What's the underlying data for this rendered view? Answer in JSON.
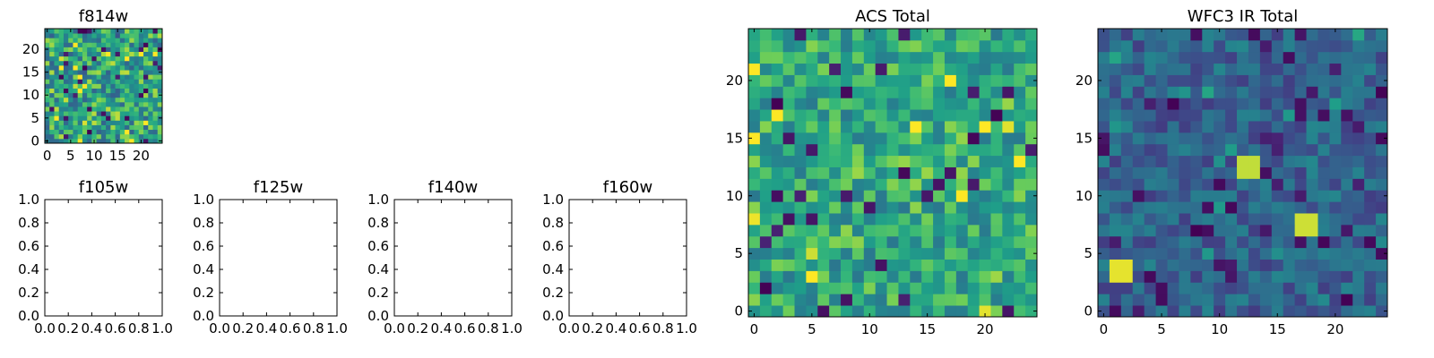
{
  "chart_data": [
    {
      "type": "heatmap",
      "title": "f814w",
      "grid_size": [
        25,
        25
      ],
      "xlim": [
        -0.5,
        24.5
      ],
      "ylim": [
        -0.5,
        24.5
      ],
      "xticks": [
        0,
        5,
        10,
        15,
        20
      ],
      "yticks": [
        0,
        5,
        10,
        15,
        20
      ],
      "colormap": "viridis",
      "color_range": [
        0,
        1
      ],
      "seed": 11,
      "base_range": [
        0.35,
        0.95
      ],
      "rare_low": 0.06,
      "blobs": [],
      "description": "25x25 pixel cutout, mostly green-yellow with scattered dark pixels"
    },
    {
      "type": "empty",
      "title": "f105w",
      "xlim": [
        0,
        1
      ],
      "ylim": [
        0,
        1
      ],
      "xticks": [
        "0.0",
        "0.2",
        "0.4",
        "0.6",
        "0.8",
        "1.0"
      ],
      "yticks": [
        "0.0",
        "0.2",
        "0.4",
        "0.6",
        "0.8",
        "1.0"
      ]
    },
    {
      "type": "empty",
      "title": "f125w",
      "xlim": [
        0,
        1
      ],
      "ylim": [
        0,
        1
      ],
      "xticks": [
        "0.0",
        "0.2",
        "0.4",
        "0.6",
        "0.8",
        "1.0"
      ],
      "yticks": [
        "0.0",
        "0.2",
        "0.4",
        "0.6",
        "0.8",
        "1.0"
      ]
    },
    {
      "type": "empty",
      "title": "f140w",
      "xlim": [
        0,
        1
      ],
      "ylim": [
        0,
        1
      ],
      "xticks": [
        "0.0",
        "0.2",
        "0.4",
        "0.6",
        "0.8",
        "1.0"
      ],
      "yticks": [
        "0.0",
        "0.2",
        "0.4",
        "0.6",
        "0.8",
        "1.0"
      ]
    },
    {
      "type": "empty",
      "title": "f160w",
      "xlim": [
        0,
        1
      ],
      "ylim": [
        0,
        1
      ],
      "xticks": [
        "0.0",
        "0.2",
        "0.4",
        "0.6",
        "0.8",
        "1.0"
      ],
      "yticks": [
        "0.0",
        "0.2",
        "0.4",
        "0.6",
        "0.8",
        "1.0"
      ]
    },
    {
      "type": "heatmap",
      "title": "ACS Total",
      "grid_size": [
        25,
        25
      ],
      "xlim": [
        -0.5,
        24.5
      ],
      "ylim": [
        -0.5,
        24.5
      ],
      "xticks": [
        0,
        5,
        10,
        15,
        20
      ],
      "yticks": [
        0,
        5,
        10,
        15,
        20
      ],
      "colormap": "viridis",
      "color_range": [
        0,
        1
      ],
      "seed": 23,
      "base_range": [
        0.45,
        0.92
      ],
      "rare_low": 0.05,
      "blobs": [],
      "description": "25x25 pixel cutout, green-yellow noise with a few dark pixels"
    },
    {
      "type": "heatmap",
      "title": "WFC3 IR Total",
      "grid_size": [
        25,
        25
      ],
      "xlim": [
        -0.5,
        24.5
      ],
      "ylim": [
        -0.5,
        24.5
      ],
      "xticks": [
        0,
        5,
        10,
        15,
        20
      ],
      "yticks": [
        0,
        5,
        10,
        15,
        20
      ],
      "colormap": "viridis",
      "color_range": [
        0,
        1
      ],
      "seed": 37,
      "base_range": [
        0.2,
        0.52
      ],
      "rare_low": 0.08,
      "blobs": [
        {
          "x": [
            1,
            2
          ],
          "y": [
            3,
            4
          ],
          "value": 0.98
        },
        {
          "x": [
            12,
            13
          ],
          "y": [
            12,
            13
          ],
          "value": 0.95
        },
        {
          "x": [
            17,
            18
          ],
          "y": [
            7,
            8
          ],
          "value": 0.96
        }
      ],
      "description": "25x25 pixel cutout, dark blue-teal noise with three bright yellow 2x2 sources"
    }
  ]
}
